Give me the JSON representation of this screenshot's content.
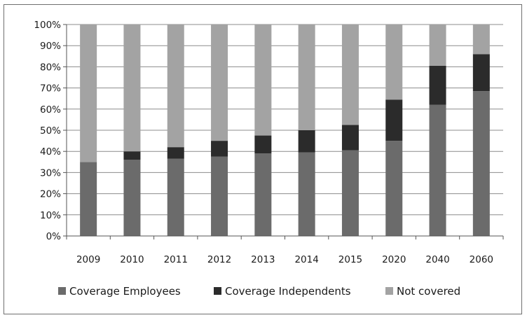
{
  "chart_data": {
    "type": "bar",
    "stacked": true,
    "percent": true,
    "categories": [
      "2009",
      "2010",
      "2011",
      "2012",
      "2013",
      "2014",
      "2015",
      "2020",
      "2040",
      "2060"
    ],
    "series": [
      {
        "name": "Coverage Employees",
        "color": "#6b6b6b",
        "values": [
          35,
          36,
          36.5,
          37.5,
          39,
          39.5,
          40.5,
          45,
          62,
          68.5
        ]
      },
      {
        "name": "Coverage Independents",
        "color": "#2b2b2b",
        "values": [
          0,
          4,
          5.5,
          7.5,
          8.5,
          10.5,
          12,
          19.5,
          18.5,
          17.5
        ]
      },
      {
        "name": "Not covered",
        "color": "#a3a3a3",
        "values": [
          65,
          60,
          58,
          55,
          52.5,
          50,
          47.5,
          35.5,
          19.5,
          14
        ]
      }
    ],
    "yticks": [
      "0%",
      "10%",
      "20%",
      "30%",
      "40%",
      "50%",
      "60%",
      "70%",
      "80%",
      "90%",
      "100%"
    ],
    "ylim": [
      0,
      100
    ],
    "grid": true,
    "legend": "bottom"
  }
}
